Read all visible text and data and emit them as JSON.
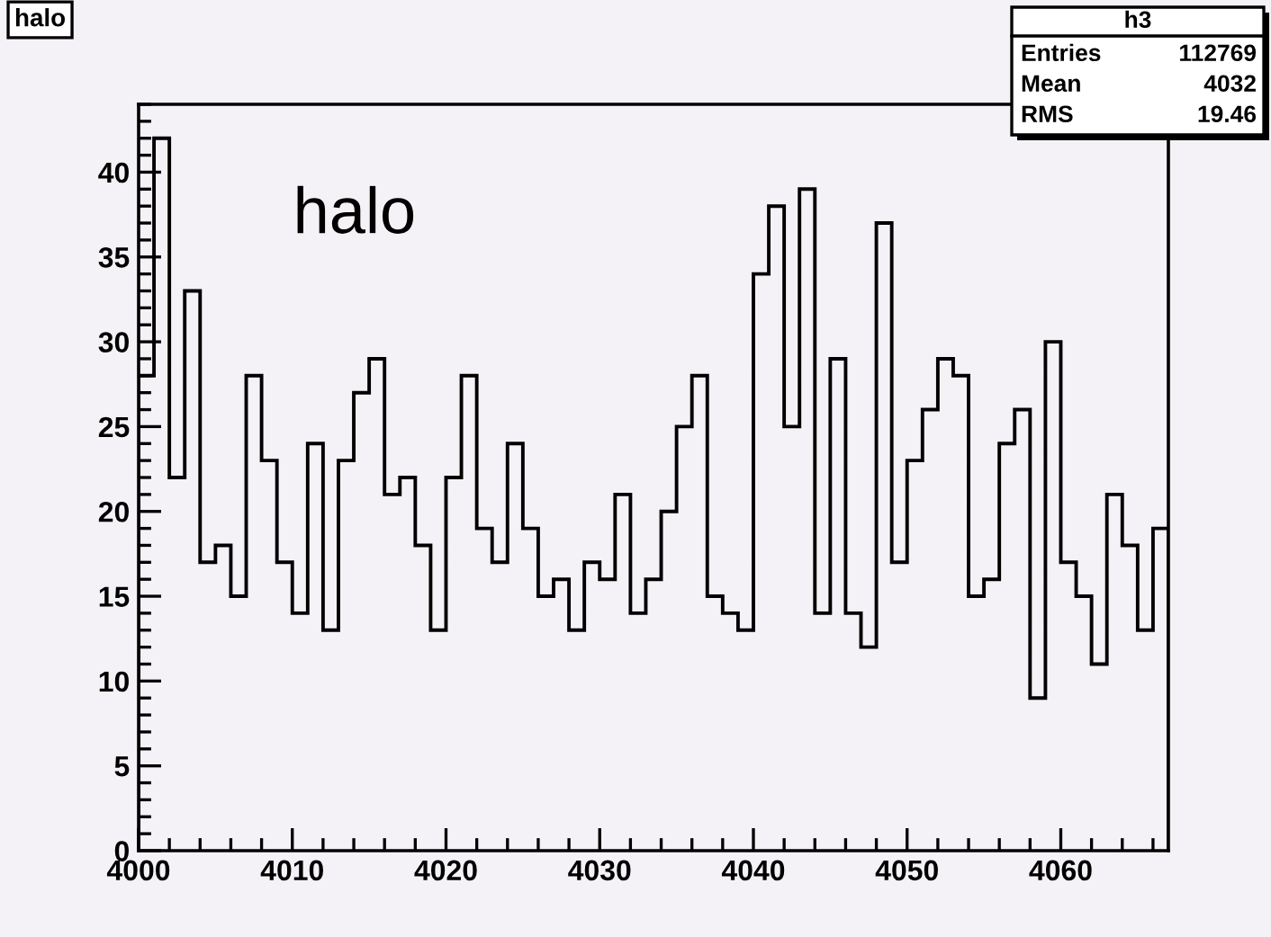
{
  "chart_data": {
    "type": "histogram",
    "title": "halo",
    "annotations": [
      "halo",
      "h3",
      "Entries 112769",
      "Mean 4032",
      "RMS 19.46"
    ],
    "bins": [
      4000,
      4001,
      4002,
      4003,
      4004,
      4005,
      4006,
      4007,
      4008,
      4009,
      4010,
      4011,
      4012,
      4013,
      4014,
      4015,
      4016,
      4017,
      4018,
      4019,
      4020,
      4021,
      4022,
      4023,
      4024,
      4025,
      4026,
      4027,
      4028,
      4029,
      4030,
      4031,
      4032,
      4033,
      4034,
      4035,
      4036,
      4037,
      4038,
      4039,
      4040,
      4041,
      4042,
      4043,
      4044,
      4045,
      4046,
      4047,
      4048,
      4049,
      4050,
      4051,
      4052,
      4053,
      4054,
      4055,
      4056,
      4057,
      4058,
      4059,
      4060,
      4061,
      4062,
      4063,
      4064,
      4065,
      4066,
      4067
    ],
    "values": [
      28,
      42,
      22,
      33,
      17,
      18,
      15,
      28,
      23,
      17,
      14,
      24,
      13,
      23,
      27,
      29,
      21,
      22,
      18,
      13,
      22,
      28,
      19,
      17,
      24,
      19,
      15,
      16,
      13,
      17,
      16,
      21,
      14,
      16,
      20,
      25,
      28,
      15,
      14,
      13,
      34,
      38,
      25,
      39,
      14,
      29,
      14,
      12,
      37,
      17,
      23,
      26,
      29,
      28,
      15,
      16,
      24,
      26,
      9,
      30,
      17,
      15,
      11,
      21,
      18,
      13,
      19
    ],
    "color": "#000000",
    "xlim": [
      4000,
      4067
    ],
    "xticks": [
      4000,
      4010,
      4020,
      4030,
      4040,
      4050,
      4060
    ],
    "ylim": [
      0,
      44
    ],
    "yticks": [
      0,
      5,
      10,
      15,
      20,
      25,
      30,
      35,
      40
    ],
    "grid": false
  }
}
